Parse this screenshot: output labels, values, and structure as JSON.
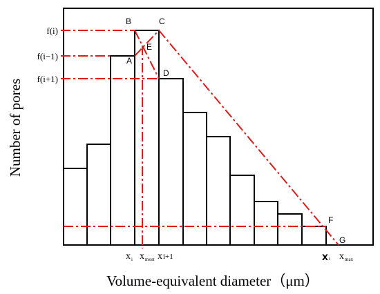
{
  "diagram": {
    "y_axis_label": "Number of pores",
    "x_axis_label": "Volume-equivalent diameter（μm）",
    "y_tick_labels": {
      "fi": "f(i)",
      "fim1": "f(i−1)",
      "fip1": "f(i+1)"
    },
    "x_tick_labels": {
      "xi_left": "x",
      "xi_left_sub": "i",
      "xmost": "x",
      "xmost_sub": "most",
      "xip1": "x",
      "xip1_sub": "i+1",
      "xj": "x",
      "xj_sub": "i",
      "xmax": "x",
      "xmax_sub": "max"
    },
    "point_labels": {
      "A": "A",
      "B": "B",
      "C": "C",
      "D": "D",
      "E": "E",
      "F": "F",
      "G": "G"
    },
    "bars": [
      {
        "name": "bar-1",
        "height": 0.357
      },
      {
        "name": "bar-2",
        "height": 0.471
      },
      {
        "name": "bar-3",
        "height": 0.877
      },
      {
        "name": "bar-4",
        "height": 1.0
      },
      {
        "name": "bar-5",
        "height": 0.779
      },
      {
        "name": "bar-6",
        "height": 0.62
      },
      {
        "name": "bar-7",
        "height": 0.51
      },
      {
        "name": "bar-8",
        "height": 0.328
      },
      {
        "name": "bar-9",
        "height": 0.201
      },
      {
        "name": "bar-10",
        "height": 0.146
      },
      {
        "name": "bar-11",
        "height": 0.075
      }
    ],
    "colors": {
      "bars": "#000000",
      "guide_lines": "#e01818"
    }
  }
}
